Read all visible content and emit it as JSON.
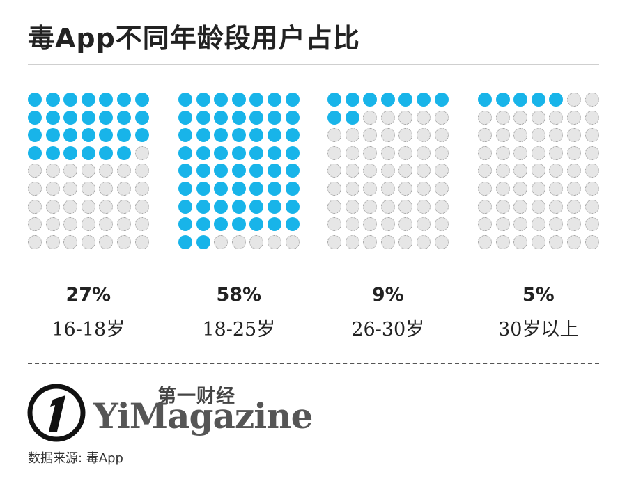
{
  "title": "毒App不同年龄段用户占比",
  "colors": {
    "filled": "#18b4e9",
    "empty": "#e6e6e6"
  },
  "chart_data": {
    "type": "waffle",
    "title": "毒App不同年龄段用户占比",
    "grid": {
      "columns": 7,
      "rows": 9
    },
    "categories": [
      "16-18岁",
      "18-25岁",
      "26-30岁",
      "30岁以上"
    ],
    "percent_labels": [
      "27%",
      "58%",
      "9%",
      "5%"
    ],
    "values": [
      27,
      58,
      9,
      5
    ],
    "filled_dots": [
      27,
      58,
      9,
      5
    ]
  },
  "footer": {
    "brand_cn": "第一财经",
    "brand_en": "YiMagazine",
    "source": "数据来源: 毒App"
  }
}
